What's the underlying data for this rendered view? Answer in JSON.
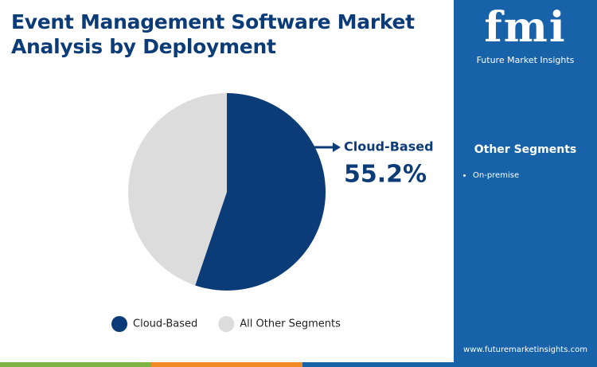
{
  "chart_data": {
    "type": "pie",
    "title": "Event Management Software Market Analysis by Deployment",
    "categories": [
      "Cloud-Based",
      "All Other Segments"
    ],
    "values": [
      55.2,
      44.8
    ],
    "value_labels": [
      "55.2%",
      null
    ],
    "colors": [
      "#0c3c78",
      "#dcdcdc"
    ],
    "legend": "bottom"
  },
  "sidebar": {
    "logo": "fmi",
    "brand": "Future Market Insights",
    "heading": "Other Segments",
    "items": [
      "On-premise"
    ],
    "website": "www.futuremarketinsights.com"
  }
}
